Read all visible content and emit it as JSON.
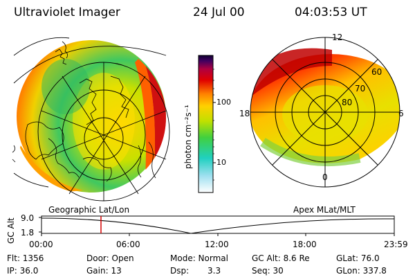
{
  "header": {
    "title": "Ultraviolet Imager",
    "date": "24 Jul 00",
    "time": "04:03:53 UT"
  },
  "colorbar": {
    "unit_label": "photon cm⁻²s⁻¹",
    "ticks": [
      "100",
      "10"
    ]
  },
  "right_map": {
    "mlt_labels": {
      "top": "12",
      "left": "18",
      "right": "6",
      "bottom": "0"
    },
    "lat_labels": [
      "60",
      "70",
      "80"
    ]
  },
  "projections": {
    "left": "Geographic Lat/Lon",
    "right": "Apex MLat/MLT"
  },
  "altitude_plot": {
    "ylabel": "GC Alt",
    "y_ticks": [
      "9.0",
      "1.8"
    ],
    "x_ticks": [
      "00:00",
      "06:00",
      "12:00",
      "18:00",
      "23:59"
    ]
  },
  "status": {
    "flt": "Flt: 1356",
    "ip": "IP: 36.0",
    "door": "Door: Open",
    "gain": "Gain: 13",
    "mode": "Mode: Normal",
    "dsp_label": "Dsp:",
    "dsp_value": "3.3",
    "gc_alt": "GC Alt: 8.6 Re",
    "seq": "Seq: 30",
    "glat": "GLat: 76.0",
    "glon": "GLon: 337.8"
  },
  "colors": {
    "marker": "#d40000",
    "aurora_high": "#c00000",
    "aurora_mid": "#ff9a00",
    "aurora_low": "#30c060"
  }
}
